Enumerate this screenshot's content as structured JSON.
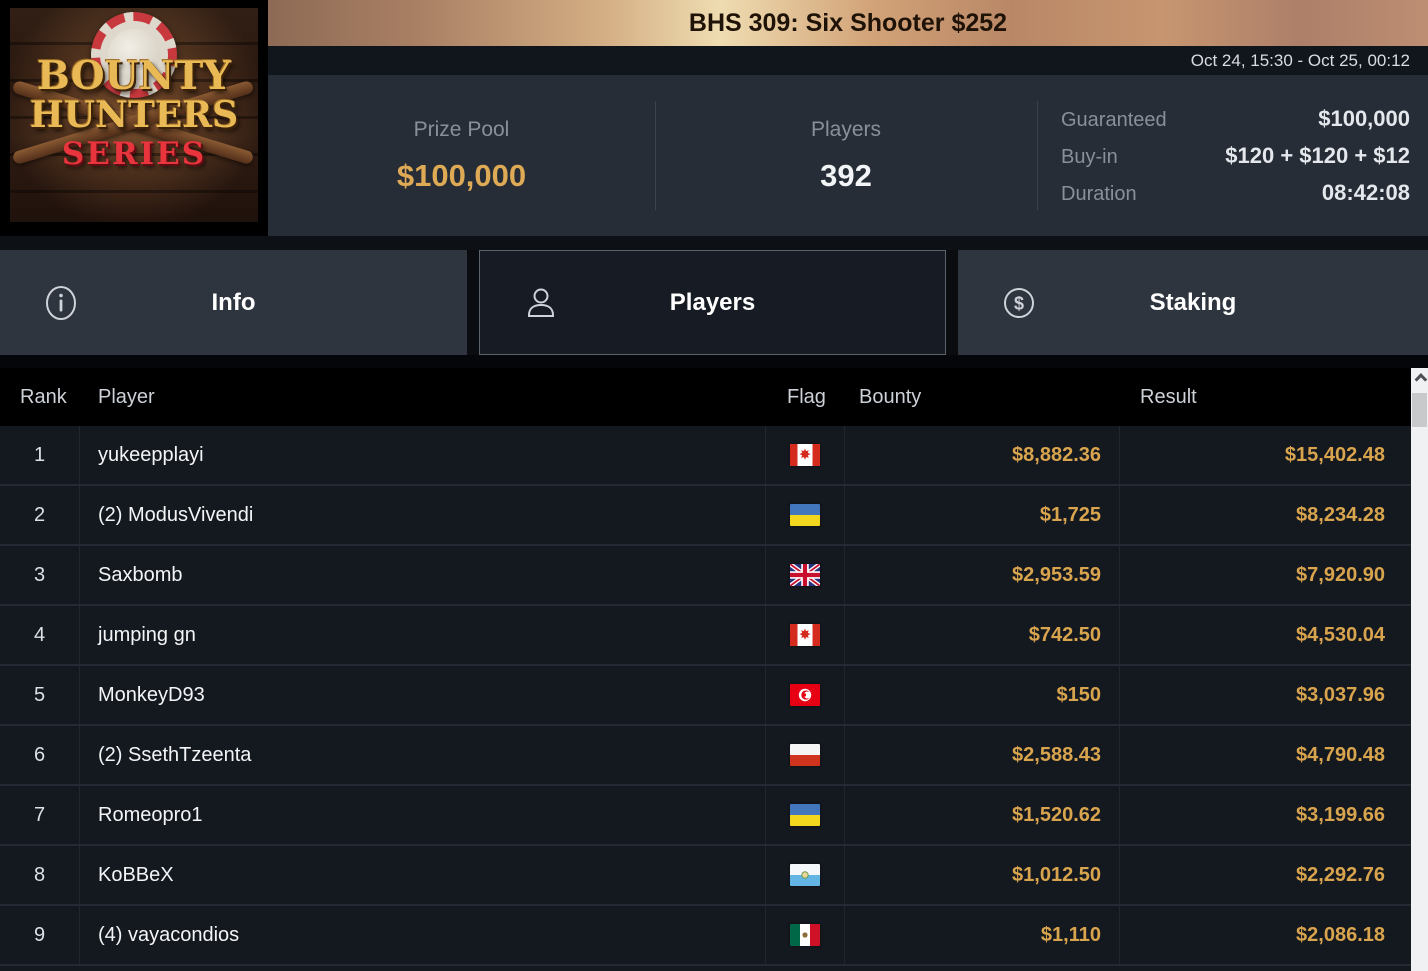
{
  "header": {
    "title": "BHS 309: Six Shooter $252",
    "schedule": "Oct 24, 15:30 - Oct 25, 00:12",
    "logo": {
      "line1": "BOUNTY",
      "line2": "HUNTERS",
      "line3": "SERIES"
    }
  },
  "stats": {
    "prize_pool": {
      "label": "Prize Pool",
      "value": "$100,000"
    },
    "players": {
      "label": "Players",
      "value": "392"
    },
    "details": [
      {
        "label": "Guaranteed",
        "value": "$100,000"
      },
      {
        "label": "Buy-in",
        "value": "$120 + $120 + $12"
      },
      {
        "label": "Duration",
        "value": "08:42:08"
      }
    ]
  },
  "tabs": [
    {
      "label": "Info",
      "icon": "info-icon",
      "active": false
    },
    {
      "label": "Players",
      "icon": "person-icon",
      "active": true
    },
    {
      "label": "Staking",
      "icon": "dollar-circle-icon",
      "active": false
    }
  ],
  "table": {
    "columns": [
      "Rank",
      "Player",
      "Flag",
      "Bounty",
      "Result"
    ],
    "rows": [
      {
        "rank": "1",
        "player": "yukeepplayi",
        "flag": "canada",
        "bounty": "$8,882.36",
        "result": "$15,402.48"
      },
      {
        "rank": "2",
        "player": "(2) ModusVivendi",
        "flag": "ukraine",
        "bounty": "$1,725",
        "result": "$8,234.28"
      },
      {
        "rank": "3",
        "player": "Saxbomb",
        "flag": "united-kingdom",
        "bounty": "$2,953.59",
        "result": "$7,920.90"
      },
      {
        "rank": "4",
        "player": "jumping gn",
        "flag": "canada",
        "bounty": "$742.50",
        "result": "$4,530.04"
      },
      {
        "rank": "5",
        "player": "MonkeyD93",
        "flag": "tunisia",
        "bounty": "$150",
        "result": "$3,037.96"
      },
      {
        "rank": "6",
        "player": "(2) SsethTzeenta",
        "flag": "poland",
        "bounty": "$2,588.43",
        "result": "$4,790.48"
      },
      {
        "rank": "7",
        "player": "Romeopro1",
        "flag": "ukraine",
        "bounty": "$1,520.62",
        "result": "$3,199.66"
      },
      {
        "rank": "8",
        "player": "KoBBeX",
        "flag": "san-marino",
        "bounty": "$1,012.50",
        "result": "$2,292.76"
      },
      {
        "rank": "9",
        "player": "(4) vayacondios",
        "flag": "mexico",
        "bounty": "$1,110",
        "result": "$2,086.18"
      }
    ]
  },
  "colors": {
    "accent_gold": "#d9a44e",
    "prize_gold": "#dfaa55",
    "stats_bg": "#272d36",
    "row_bg": "#14181f",
    "header_bg": "#000000",
    "tab_inactive_bg": "#2e353e",
    "tab_active_bg": "#171b23",
    "title_text": "#1f1307"
  }
}
